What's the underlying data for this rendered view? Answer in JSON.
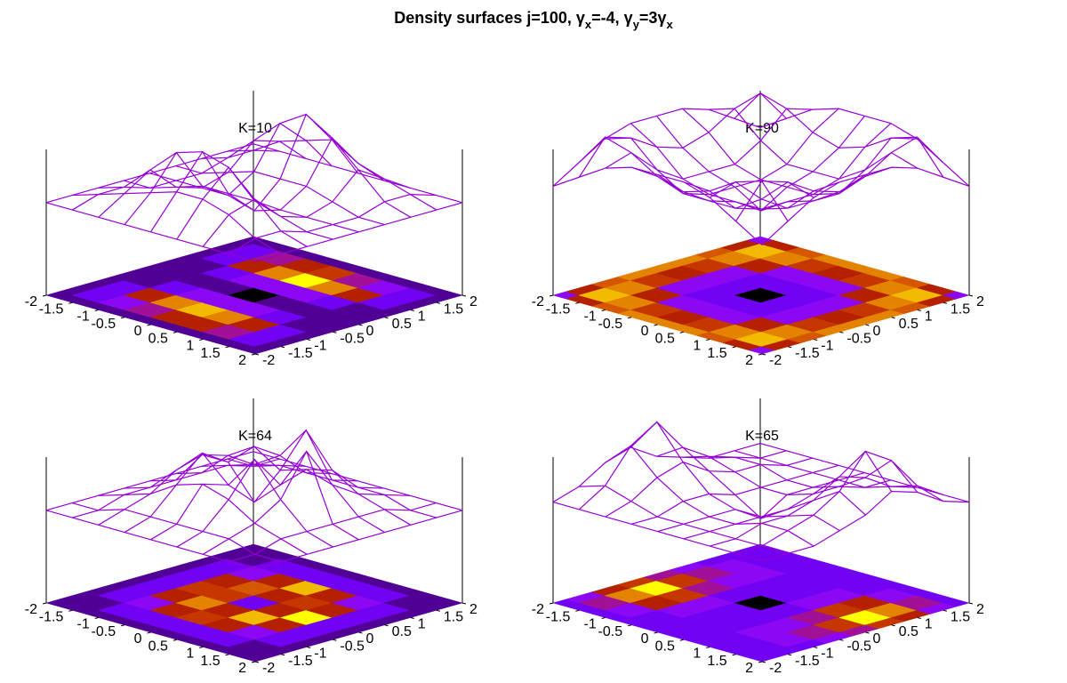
{
  "title": [
    "Density surfaces j=100, γ",
    "x",
    "=-4, γ",
    "y",
    "=3γ",
    "x"
  ],
  "chart_data": [
    {
      "type": "surface",
      "title": "K=10",
      "color": "#9400d3",
      "xlim": [
        -2,
        2
      ],
      "ylim": [
        -2,
        2
      ],
      "zlim": [
        0,
        1
      ],
      "xticks": [
        -2,
        -1.5,
        -1,
        -0.5,
        0,
        0.5,
        1,
        1.5,
        2
      ],
      "yticks": [
        -2,
        -1.5,
        -1,
        -0.5,
        0,
        0.5,
        1,
        1.5,
        2
      ],
      "x": [
        -2,
        -1.5,
        -1,
        -0.5,
        0,
        0.5,
        1,
        1.5,
        2
      ],
      "y": [
        -2,
        -1.5,
        -1,
        -0.5,
        0,
        0.5,
        1,
        1.5,
        2
      ],
      "z": [
        [
          0.1,
          0.1,
          0.1,
          0.1,
          0.1,
          0.1,
          0.1,
          0.1,
          0.1
        ],
        [
          0.1,
          0.2,
          0.2,
          0.1,
          0.1,
          0.1,
          0.2,
          0.2,
          0.1
        ],
        [
          0.1,
          0.3,
          0.5,
          0.2,
          0.1,
          0.2,
          0.5,
          0.4,
          0.1
        ],
        [
          0.1,
          0.4,
          0.8,
          0.3,
          0.1,
          0.3,
          0.8,
          0.5,
          0.1
        ],
        [
          0.1,
          0.5,
          0.9,
          0.3,
          0,
          0.3,
          1,
          0.6,
          0.1
        ],
        [
          0.1,
          0.5,
          0.8,
          0.3,
          0.1,
          0.3,
          0.8,
          0.4,
          0.1
        ],
        [
          0.1,
          0.4,
          0.5,
          0.2,
          0.1,
          0.2,
          0.5,
          0.3,
          0.1
        ],
        [
          0.1,
          0.2,
          0.2,
          0.1,
          0.1,
          0.1,
          0.2,
          0.2,
          0.1
        ],
        [
          0.1,
          0.1,
          0.1,
          0.1,
          0.1,
          0.1,
          0.1,
          0.1,
          0.1
        ]
      ]
    },
    {
      "type": "surface",
      "title": "K=90",
      "color": "#9400d3",
      "xlim": [
        -2,
        2
      ],
      "ylim": [
        -2,
        2
      ],
      "zlim": [
        0,
        1
      ],
      "xticks": [
        -2,
        -1.5,
        -1,
        -0.5,
        0,
        0.5,
        1,
        1.5,
        2
      ],
      "yticks": [
        -2,
        -1.5,
        -1,
        -0.5,
        0,
        0.5,
        1,
        1.5,
        2
      ],
      "x": [
        -2,
        -1.5,
        -1,
        -0.5,
        0,
        0.5,
        1,
        1.5,
        2
      ],
      "y": [
        -2,
        -1.5,
        -1,
        -0.5,
        0,
        0.5,
        1,
        1.5,
        2
      ],
      "z": [
        [
          0.3,
          0.5,
          0.7,
          0.8,
          0.8,
          0.8,
          0.7,
          0.5,
          0.3
        ],
        [
          0.5,
          0.9,
          0.8,
          0.6,
          0.5,
          0.6,
          0.8,
          0.9,
          0.5
        ],
        [
          0.7,
          0.8,
          0.5,
          0.3,
          0.3,
          0.3,
          0.5,
          0.8,
          0.7
        ],
        [
          0.8,
          0.6,
          0.3,
          0.2,
          0.2,
          0.2,
          0.3,
          0.6,
          0.8
        ],
        [
          0.8,
          0.5,
          0.3,
          0.2,
          0,
          0.2,
          0.3,
          0.5,
          0.8
        ],
        [
          0.8,
          0.6,
          0.3,
          0.2,
          0.2,
          0.2,
          0.3,
          0.6,
          0.8
        ],
        [
          0.7,
          0.8,
          0.5,
          0.3,
          0.3,
          0.3,
          0.5,
          0.8,
          0.7
        ],
        [
          0.5,
          0.9,
          0.8,
          0.6,
          0.5,
          0.6,
          0.8,
          0.9,
          0.5
        ],
        [
          0.3,
          0.5,
          0.7,
          0.8,
          0.8,
          0.8,
          0.7,
          0.5,
          0.3
        ]
      ]
    },
    {
      "type": "surface",
      "title": "K=64",
      "color": "#9400d3",
      "xlim": [
        -2,
        2
      ],
      "ylim": [
        -2,
        2
      ],
      "zlim": [
        0,
        1
      ],
      "xticks": [
        -2,
        -1.5,
        -1,
        -0.5,
        0,
        0.5,
        1,
        1.5,
        2
      ],
      "yticks": [
        -2,
        -1.5,
        -1,
        -0.5,
        0,
        0.5,
        1,
        1.5,
        2
      ],
      "x": [
        -2,
        -1.5,
        -1,
        -0.5,
        0,
        0.5,
        1,
        1.5,
        2
      ],
      "y": [
        -2,
        -1.5,
        -1,
        -0.5,
        0,
        0.5,
        1,
        1.5,
        2
      ],
      "z": [
        [
          0.1,
          0.1,
          0.1,
          0.1,
          0.1,
          0.1,
          0.1,
          0.1,
          0.1
        ],
        [
          0.1,
          0.1,
          0.2,
          0.2,
          0.2,
          0.2,
          0.2,
          0.1,
          0.1
        ],
        [
          0.1,
          0.2,
          0.3,
          0.5,
          0.6,
          0.5,
          0.3,
          0.2,
          0.1
        ],
        [
          0.1,
          0.2,
          0.5,
          0.8,
          0.6,
          0.7,
          0.5,
          0.2,
          0.1
        ],
        [
          0.1,
          0.2,
          0.6,
          0.5,
          0.2,
          0.5,
          0.9,
          0.2,
          0.1
        ],
        [
          0.1,
          0.2,
          0.5,
          0.9,
          0.5,
          0.6,
          0.5,
          0.2,
          0.1
        ],
        [
          0.1,
          0.2,
          0.3,
          0.5,
          1,
          0.5,
          0.3,
          0.2,
          0.1
        ],
        [
          0.1,
          0.1,
          0.2,
          0.2,
          0.2,
          0.2,
          0.2,
          0.1,
          0.1
        ],
        [
          0.1,
          0.1,
          0.1,
          0.1,
          0.1,
          0.1,
          0.1,
          0.1,
          0.1
        ]
      ]
    },
    {
      "type": "surface",
      "title": "K=65",
      "color": "#9400d3",
      "xlim": [
        -2,
        2
      ],
      "ylim": [
        -2,
        2
      ],
      "zlim": [
        0,
        1
      ],
      "xticks": [
        -2,
        -1.5,
        -1,
        -0.5,
        0,
        0.5,
        1,
        1.5,
        2
      ],
      "yticks": [
        -2,
        -1.5,
        -1,
        -0.5,
        0,
        0.5,
        1,
        1.5,
        2
      ],
      "x": [
        -2,
        -1.5,
        -1,
        -0.5,
        0,
        0.5,
        1,
        1.5,
        2
      ],
      "y": [
        -2,
        -1.5,
        -1,
        -0.5,
        0,
        0.5,
        1,
        1.5,
        2
      ],
      "z": [
        [
          0.2,
          0.3,
          0.5,
          0.6,
          0.4,
          0.3,
          0.2,
          0.2,
          0.2
        ],
        [
          0.2,
          0.4,
          0.8,
          1,
          0.6,
          0.4,
          0.3,
          0.2,
          0.2
        ],
        [
          0.2,
          0.3,
          0.5,
          0.6,
          0.4,
          0.3,
          0.3,
          0.2,
          0.2
        ],
        [
          0.2,
          0.2,
          0.3,
          0.3,
          0.2,
          0.2,
          0.2,
          0.2,
          0.2
        ],
        [
          0.2,
          0.2,
          0.2,
          0.2,
          0,
          0.2,
          0.2,
          0.2,
          0.2
        ],
        [
          0.2,
          0.2,
          0.2,
          0.2,
          0.2,
          0.3,
          0.3,
          0.2,
          0.2
        ],
        [
          0.2,
          0.2,
          0.3,
          0.3,
          0.4,
          0.6,
          0.5,
          0.3,
          0.2
        ],
        [
          0.2,
          0.2,
          0.3,
          0.4,
          0.6,
          1,
          0.8,
          0.4,
          0.2
        ],
        [
          0.2,
          0.2,
          0.2,
          0.3,
          0.4,
          0.6,
          0.5,
          0.3,
          0.2
        ]
      ]
    }
  ]
}
